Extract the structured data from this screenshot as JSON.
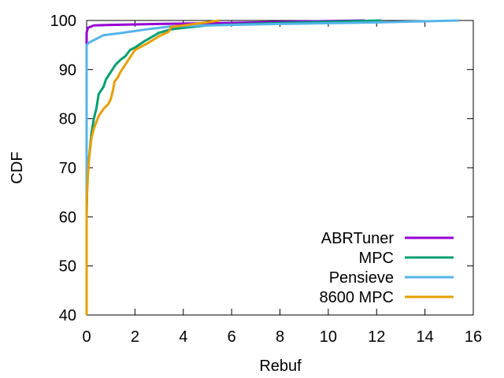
{
  "chart_data": {
    "type": "line",
    "title": "",
    "xlabel": "Rebuf",
    "ylabel": "CDF",
    "xlim": [
      0,
      16
    ],
    "ylim": [
      40,
      100
    ],
    "xticks": [
      0,
      2,
      4,
      6,
      8,
      10,
      12,
      14,
      16
    ],
    "yticks": [
      40,
      50,
      60,
      70,
      80,
      90,
      100
    ],
    "legend_position": "bottom-right",
    "series": [
      {
        "name": "ABRTuner",
        "color": "#9400d3",
        "points": [
          [
            0,
            40
          ],
          [
            0,
            97.5
          ],
          [
            0.05,
            98.5
          ],
          [
            0.3,
            99
          ],
          [
            1,
            99.1
          ],
          [
            3,
            99.3
          ],
          [
            6,
            99.5
          ],
          [
            9,
            99.8
          ],
          [
            11.5,
            100
          ]
        ]
      },
      {
        "name": "MPC",
        "color": "#009e73",
        "points": [
          [
            0,
            40
          ],
          [
            0,
            60
          ],
          [
            0.03,
            68
          ],
          [
            0.1,
            72
          ],
          [
            0.2,
            77
          ],
          [
            0.3,
            80
          ],
          [
            0.4,
            82
          ],
          [
            0.5,
            85
          ],
          [
            0.7,
            86.5
          ],
          [
            0.8,
            88
          ],
          [
            1,
            89.5
          ],
          [
            1.2,
            91
          ],
          [
            1.4,
            92
          ],
          [
            1.6,
            92.7
          ],
          [
            1.8,
            94
          ],
          [
            2,
            94.5
          ],
          [
            2.4,
            95.8
          ],
          [
            3,
            97.5
          ],
          [
            3.5,
            98.2
          ],
          [
            4,
            98.5
          ],
          [
            5,
            99
          ],
          [
            8,
            99.5
          ],
          [
            12.2,
            100
          ]
        ]
      },
      {
        "name": "Pensieve",
        "color": "#56b4e9",
        "points": [
          [
            0,
            40
          ],
          [
            0,
            95
          ],
          [
            0.1,
            95.5
          ],
          [
            0.3,
            96
          ],
          [
            0.7,
            97
          ],
          [
            1.5,
            97.5
          ],
          [
            2.5,
            98.2
          ],
          [
            3.5,
            98.8
          ],
          [
            5,
            99
          ],
          [
            8,
            99.3
          ],
          [
            12,
            99.6
          ],
          [
            15.4,
            100
          ]
        ]
      },
      {
        "name": "8600 MPC",
        "color": "#e69f00",
        "points": [
          [
            0,
            40
          ],
          [
            0,
            63
          ],
          [
            0.05,
            68
          ],
          [
            0.1,
            72
          ],
          [
            0.2,
            76
          ],
          [
            0.3,
            78
          ],
          [
            0.5,
            80.5
          ],
          [
            0.7,
            82
          ],
          [
            0.9,
            83
          ],
          [
            1,
            84
          ],
          [
            1.1,
            86
          ],
          [
            1.15,
            87.5
          ],
          [
            1.3,
            88.5
          ],
          [
            1.4,
            89.5
          ],
          [
            1.6,
            91
          ],
          [
            1.8,
            92.5
          ],
          [
            2,
            94
          ],
          [
            2.5,
            95.3
          ],
          [
            3,
            96.8
          ],
          [
            3.4,
            97.7
          ],
          [
            3.5,
            98.7
          ],
          [
            4,
            99
          ],
          [
            4.8,
            99.5
          ],
          [
            5.5,
            100
          ]
        ]
      }
    ]
  }
}
